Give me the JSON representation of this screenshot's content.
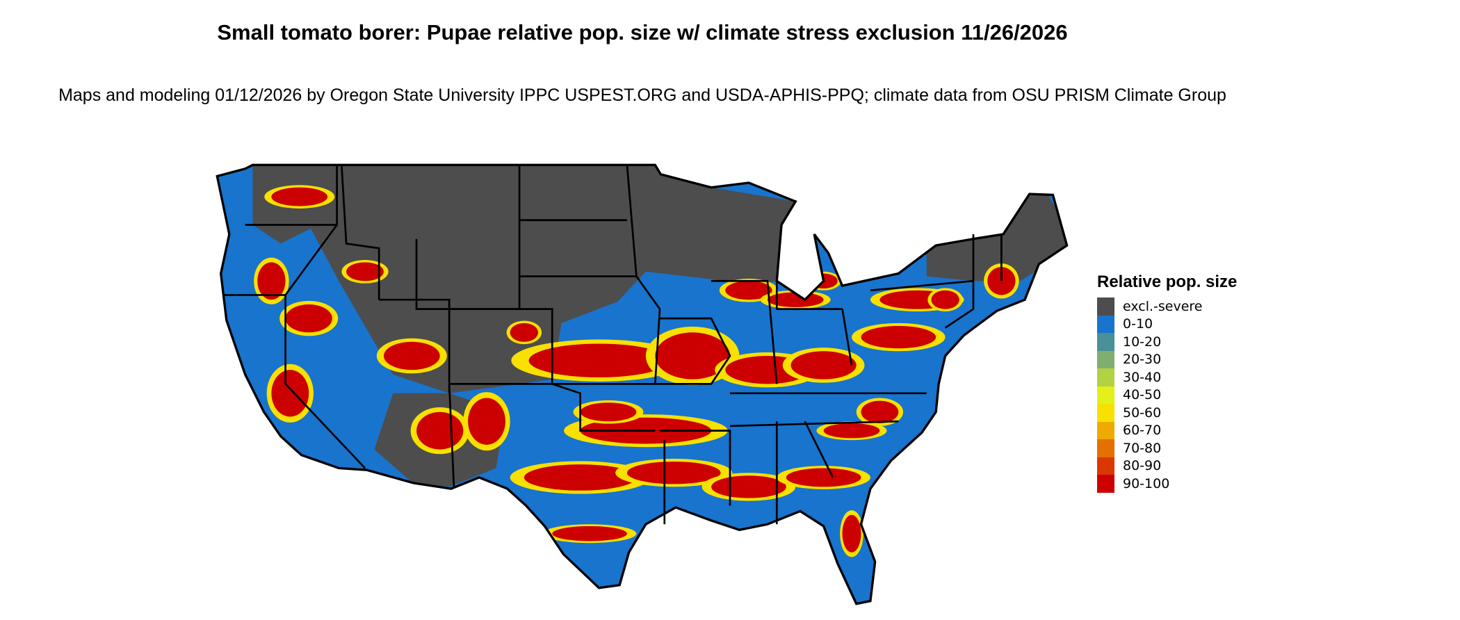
{
  "title": "Small tomato borer: Pupae relative pop. size w/ climate stress exclusion 11/26/2026",
  "subtitle": "Maps and modeling 01/12/2026 by Oregon State University IPPC USPEST.ORG and USDA-APHIS-PPQ; climate data from OSU PRISM Climate Group",
  "legend": {
    "title": "Relative pop. size",
    "items": [
      {
        "label": "excl.-severe",
        "color": "#4d4d4d"
      },
      {
        "label": "0-10",
        "color": "#1874cd"
      },
      {
        "label": "10-20",
        "color": "#4a9098"
      },
      {
        "label": "20-30",
        "color": "#7fae70"
      },
      {
        "label": "30-40",
        "color": "#b2d143"
      },
      {
        "label": "40-50",
        "color": "#e3f01a"
      },
      {
        "label": "50-60",
        "color": "#f8e000"
      },
      {
        "label": "60-70",
        "color": "#eeaa00"
      },
      {
        "label": "70-80",
        "color": "#e57000"
      },
      {
        "label": "80-90",
        "color": "#da3800"
      },
      {
        "label": "90-100",
        "color": "#cc0000"
      }
    ]
  }
}
